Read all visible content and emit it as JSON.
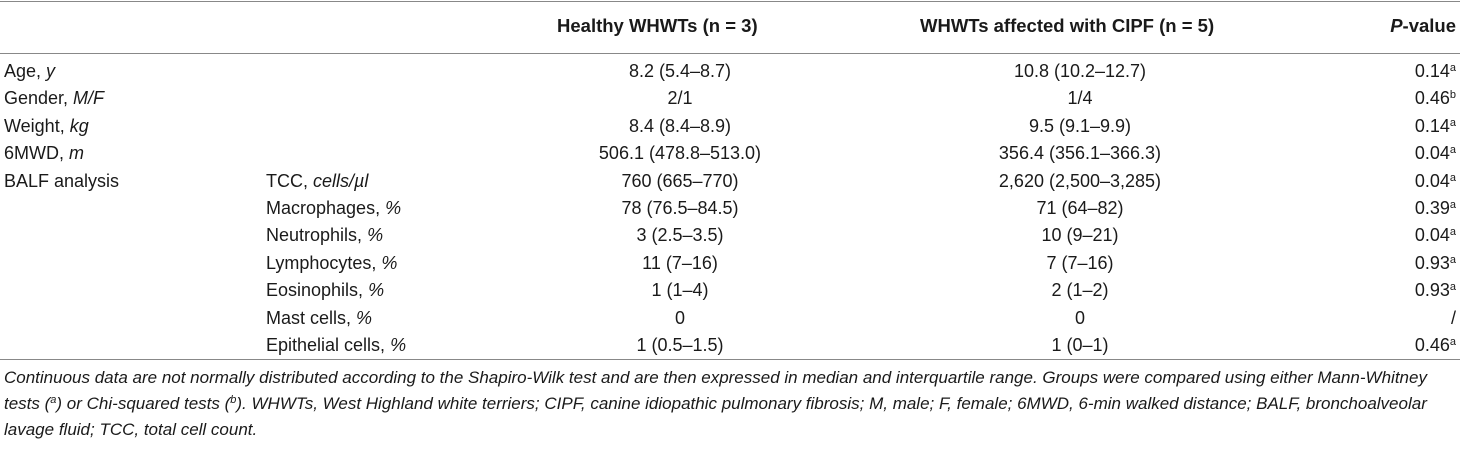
{
  "table": {
    "headers": {
      "healthy": "Healthy WHWTs (n = 3)",
      "cipf": "WHWTs affected with CIPF (n = 5)",
      "pvalue_italic": "P",
      "pvalue_rest": "-value"
    },
    "rows": [
      {
        "label": "Age, ",
        "label_unit": "y",
        "sub": "",
        "sub_unit": "",
        "healthy": "8.2 (5.4–8.7)",
        "cipf": "10.8 (10.2–12.7)",
        "pvalue": "0.14",
        "pvalue_sup": "a"
      },
      {
        "label": "Gender, ",
        "label_unit": "M/F",
        "sub": "",
        "sub_unit": "",
        "healthy": "2/1",
        "cipf": "1/4",
        "pvalue": "0.46",
        "pvalue_sup": "b"
      },
      {
        "label": "Weight, ",
        "label_unit": "kg",
        "sub": "",
        "sub_unit": "",
        "healthy": "8.4 (8.4–8.9)",
        "cipf": "9.5 (9.1–9.9)",
        "pvalue": "0.14",
        "pvalue_sup": "a"
      },
      {
        "label": "6MWD, ",
        "label_unit": "m",
        "sub": "",
        "sub_unit": "",
        "healthy": "506.1 (478.8–513.0)",
        "cipf": "356.4 (356.1–366.3)",
        "pvalue": "0.04",
        "pvalue_sup": "a"
      },
      {
        "label": "BALF analysis",
        "label_unit": "",
        "sub": "TCC, ",
        "sub_unit": "cells/µl",
        "healthy": "760 (665–770)",
        "cipf": "2,620 (2,500–3,285)",
        "pvalue": "0.04",
        "pvalue_sup": "a"
      },
      {
        "label": "",
        "label_unit": "",
        "sub": "Macrophages, ",
        "sub_unit": "%",
        "healthy": "78 (76.5–84.5)",
        "cipf": "71 (64–82)",
        "pvalue": "0.39",
        "pvalue_sup": "a"
      },
      {
        "label": "",
        "label_unit": "",
        "sub": "Neutrophils, ",
        "sub_unit": "%",
        "healthy": "3 (2.5–3.5)",
        "cipf": "10 (9–21)",
        "pvalue": "0.04",
        "pvalue_sup": "a"
      },
      {
        "label": "",
        "label_unit": "",
        "sub": "Lymphocytes, ",
        "sub_unit": "%",
        "healthy": "11 (7–16)",
        "cipf": "7 (7–16)",
        "pvalue": "0.93",
        "pvalue_sup": "a"
      },
      {
        "label": "",
        "label_unit": "",
        "sub": "Eosinophils, ",
        "sub_unit": "%",
        "healthy": "1 (1–4)",
        "cipf": "2 (1–2)",
        "pvalue": "0.93",
        "pvalue_sup": "a"
      },
      {
        "label": "",
        "label_unit": "",
        "sub": "Mast cells, ",
        "sub_unit": "%",
        "healthy": "0",
        "cipf": "0",
        "pvalue": "/",
        "pvalue_sup": ""
      },
      {
        "label": "",
        "label_unit": "",
        "sub": "Epithelial cells, ",
        "sub_unit": "%",
        "healthy": "1 (0.5–1.5)",
        "cipf": "1 (0–1)",
        "pvalue": "0.46",
        "pvalue_sup": "a"
      }
    ]
  },
  "footnote": {
    "part1": "Continuous data are not normally distributed according to the Shapiro-Wilk test and are then expressed in median and interquartile range. Groups were compared using either Mann-Whitney tests (",
    "sup_a": "a",
    "part2": ") or Chi-squared tests (",
    "sup_b": "b",
    "part3": "). WHWTs, West Highland white terriers; CIPF, canine idiopathic pulmonary fibrosis; M, male; F, female; 6MWD, 6-min walked distance; BALF, bronchoalveolar lavage fluid; TCC, total cell count."
  }
}
